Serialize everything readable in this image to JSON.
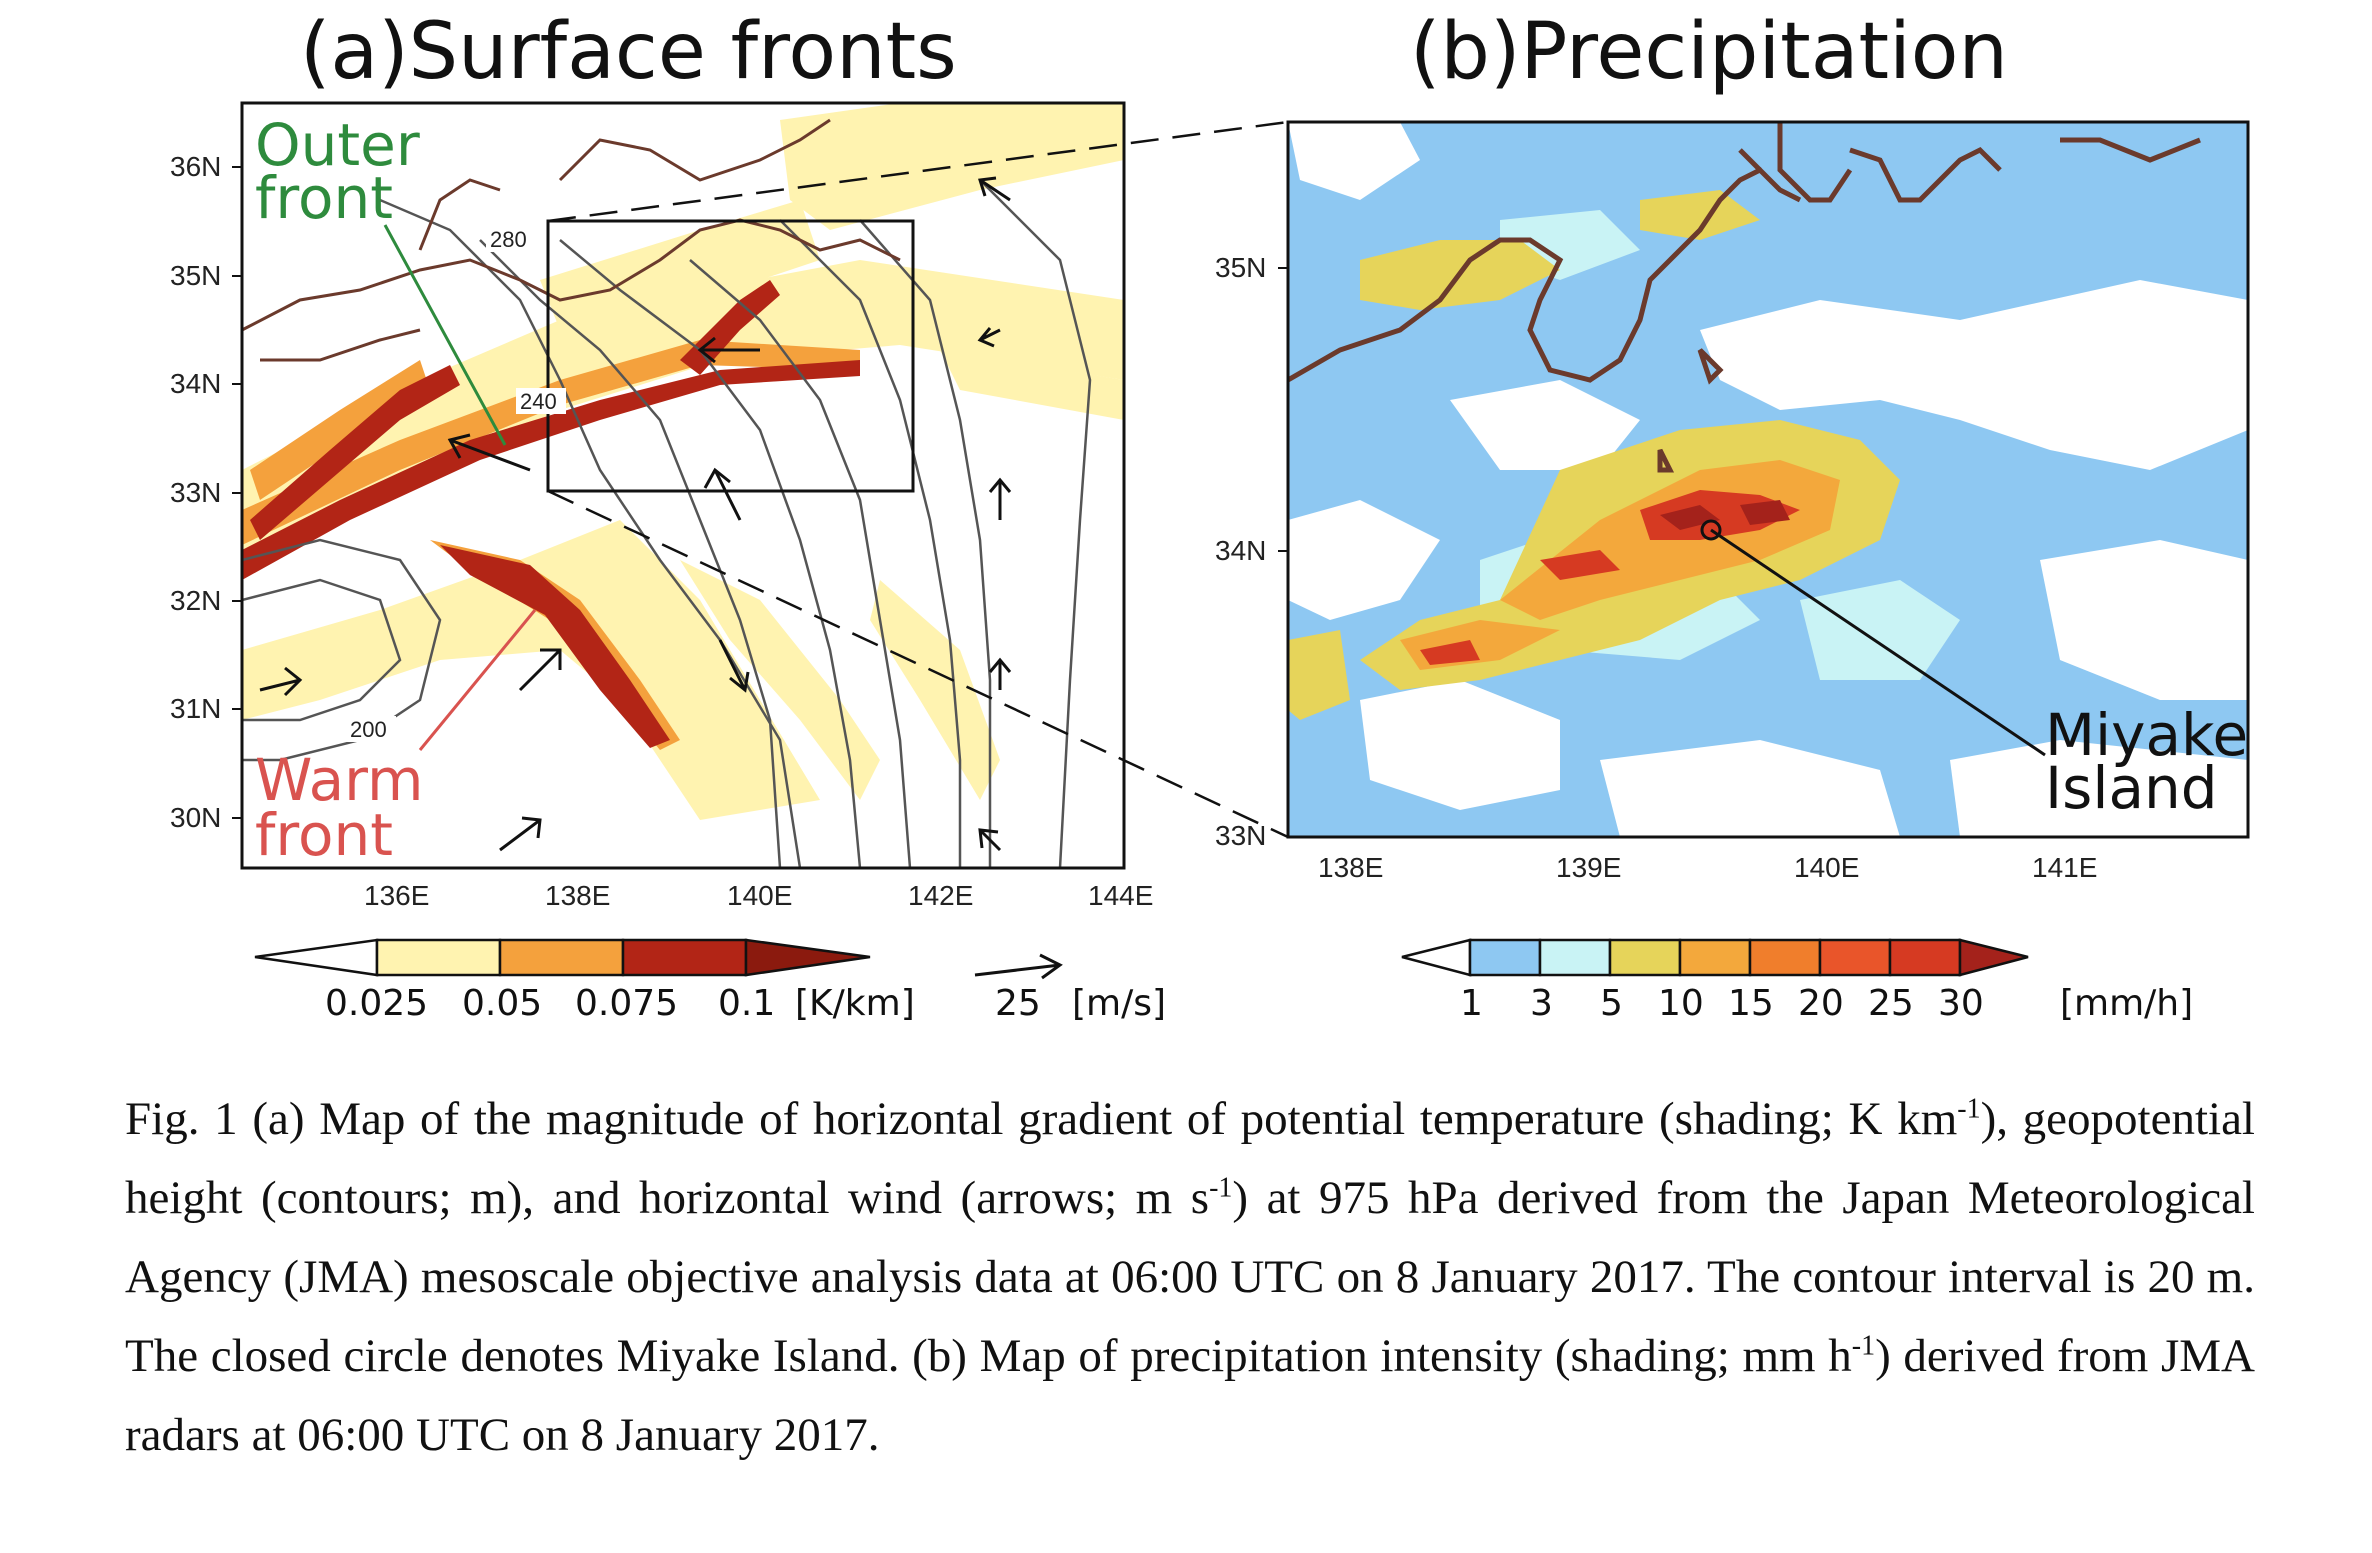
{
  "panel_a": {
    "title": "(a)Surface fronts",
    "lat_ticks": [
      "36N",
      "35N",
      "34N",
      "33N",
      "32N",
      "31N",
      "30N"
    ],
    "lon_ticks": [
      "136E",
      "138E",
      "140E",
      "142E",
      "144E"
    ],
    "contour_labels": [
      "280",
      "240",
      "200"
    ],
    "outer_front_label": [
      "Outer",
      "front"
    ],
    "warm_front_label": [
      "Warm",
      "front"
    ],
    "colorbar_labels": [
      "0.025",
      "0.05",
      "0.075",
      "0.1"
    ],
    "colorbar_unit": "[K/km]",
    "colorbar_colors": [
      "#ffffff",
      "#fff3b0",
      "#f7c770",
      "#f4a13d",
      "#b22516",
      "#8b1a0e"
    ],
    "vector_ref_value": "25",
    "vector_ref_unit": "[m/s]"
  },
  "panel_b": {
    "title": "(b)Precipitation",
    "lat_ticks": [
      "35N",
      "34N",
      "33N"
    ],
    "lon_ticks": [
      "138E",
      "139E",
      "140E",
      "141E"
    ],
    "miyake_label": [
      "Miyake",
      "Island"
    ],
    "colorbar_labels": [
      "1",
      "3",
      "5",
      "10",
      "15",
      "20",
      "25",
      "30"
    ],
    "colorbar_unit": "[mm/h]",
    "colorbar_colors": [
      "#ffffff",
      "#8ec8f2",
      "#c9f3f5",
      "#e6d45a",
      "#f3a83c",
      "#f07e2c",
      "#e9552a",
      "#d63a22",
      "#a4221b"
    ]
  },
  "colors": {
    "front_outer": "#2e8b3d",
    "front_warm": "#d9534f",
    "coast": "#6b3a2c",
    "contour": "#555555"
  },
  "caption": {
    "p1": "Fig. 1 (a) Map of the magnitude of horizontal gradient of potential temperature (shading; K km",
    "sup1": "-1",
    "p2": "), geopotential height (contours; m), and horizontal wind (arrows; m s",
    "sup2": "-1",
    "p3": ") at 975 hPa derived from the Japan Meteorological Agency (JMA) mesoscale objective analysis data at 06:00 UTC on 8 January 2017. The contour interval is 20 m. The closed circle denotes Miyake Island. (b) Map of precipitation intensity (shading; mm h",
    "sup3": "-1",
    "p4": ") derived from JMA radars at 06:00 UTC on 8 January 2017."
  }
}
